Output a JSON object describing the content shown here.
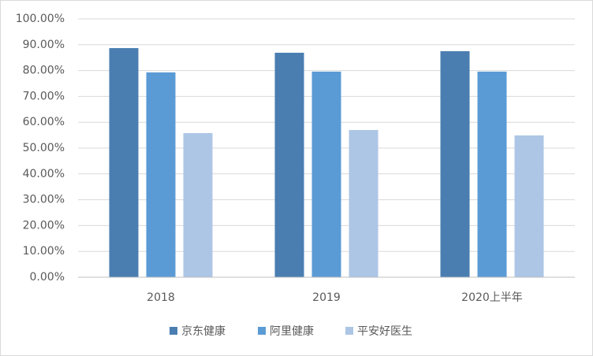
{
  "chart_data": {
    "type": "bar",
    "categories": [
      "2018",
      "2019",
      "2020上半年"
    ],
    "series": [
      {
        "name": "京东健康",
        "color": "#4a7eb1",
        "values": [
          88.7,
          86.9,
          87.5
        ]
      },
      {
        "name": "阿里健康",
        "color": "#5b9bd5",
        "values": [
          79.3,
          79.6,
          79.6
        ]
      },
      {
        "name": "平安好医生",
        "color": "#adc6e6",
        "values": [
          55.8,
          57.0,
          54.9
        ]
      }
    ],
    "ylim": [
      0,
      100
    ],
    "yticks": [
      {
        "value": 0,
        "label": "0.00%"
      },
      {
        "value": 10,
        "label": "10.00%"
      },
      {
        "value": 20,
        "label": "20.00%"
      },
      {
        "value": 30,
        "label": "30.00%"
      },
      {
        "value": 40,
        "label": "40.00%"
      },
      {
        "value": 50,
        "label": "50.00%"
      },
      {
        "value": 60,
        "label": "60.00%"
      },
      {
        "value": 70,
        "label": "70.00%"
      },
      {
        "value": 80,
        "label": "80.00%"
      },
      {
        "value": 90,
        "label": "90.00%"
      },
      {
        "value": 100,
        "label": "100.00%"
      }
    ],
    "grid": true,
    "legend": "bottom"
  }
}
